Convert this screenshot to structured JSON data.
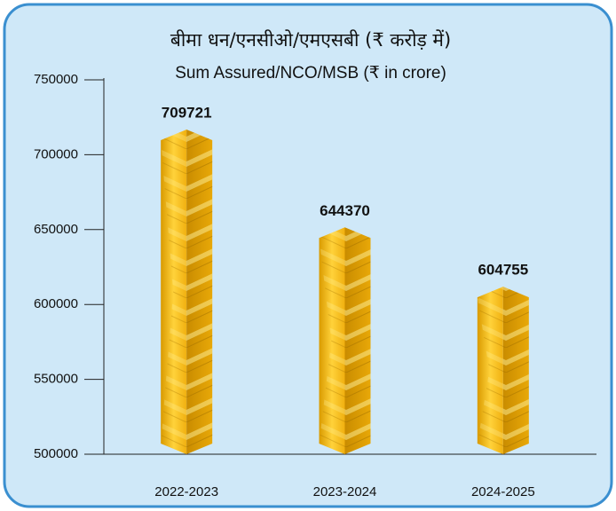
{
  "chart_data": {
    "type": "bar",
    "title": "बीमा धन/एनसीओ/एमएसबी (₹ करोड़ में)",
    "subtitle": "Sum Assured/NCO/MSB (₹ in crore)",
    "categories": [
      "2022-2023",
      "2023-2024",
      "2024-2025"
    ],
    "values": [
      709721,
      644370,
      604755
    ],
    "color": "#f2b517",
    "ylim": [
      500000,
      750000
    ],
    "yticks": [
      500000,
      550000,
      600000,
      650000,
      700000,
      750000
    ]
  }
}
